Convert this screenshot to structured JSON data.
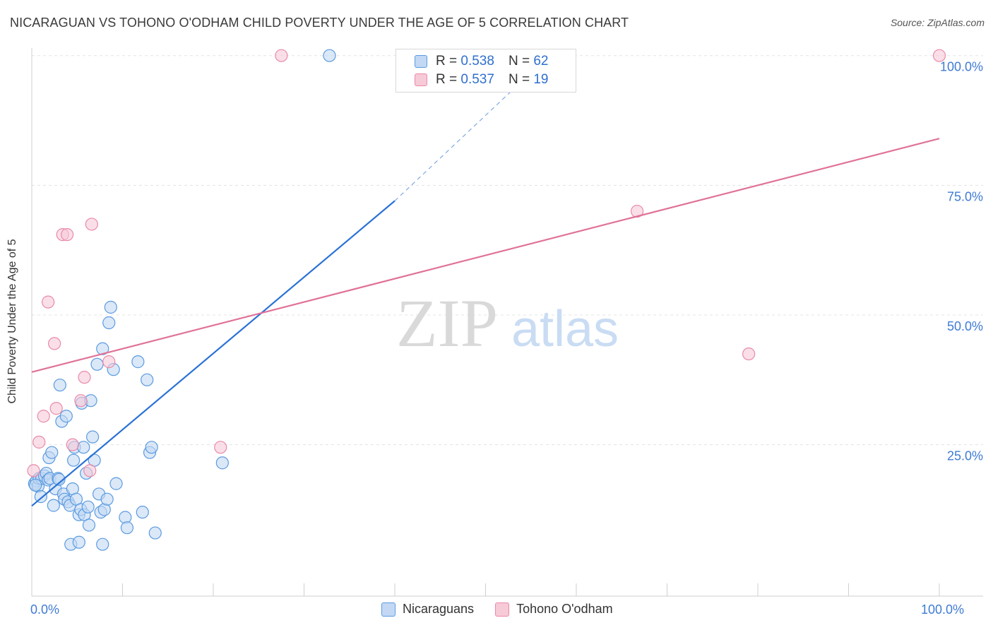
{
  "chart_data": {
    "type": "scatter",
    "title": "NICARAGUAN VS TOHONO O'ODHAM CHILD POVERTY UNDER THE AGE OF 5 CORRELATION CHART",
    "source": "Source: ZipAtlas.com",
    "ylabel": "Child Poverty Under the Age of 5",
    "xlabel": "",
    "xlim": [
      0,
      100
    ],
    "ylim": [
      -2,
      102
    ],
    "x_tick_labels": [
      {
        "value": 0,
        "label": "0.0%"
      },
      {
        "value": 100,
        "label": "100.0%"
      }
    ],
    "y_tick_labels": [
      {
        "value": 25,
        "label": "25.0%"
      },
      {
        "value": 50,
        "label": "50.0%"
      },
      {
        "value": 75,
        "label": "75.0%"
      },
      {
        "value": 100,
        "label": "100.0%"
      }
    ],
    "watermark": {
      "zip": "ZIP",
      "atlas": "atlas"
    },
    "series": [
      {
        "name": "Nicaraguans",
        "color": "#5b9be0",
        "fill": "#c3d8f4",
        "r": "0.538",
        "n": "62",
        "trend": {
          "x0": 0,
          "y0": 13.2,
          "x1": 40,
          "y1": 72.0,
          "dash_to_x": 57,
          "dash_to_y": 100
        },
        "points": [
          [
            0.3,
            17.5
          ],
          [
            0.5,
            18.0
          ],
          [
            0.7,
            17.0
          ],
          [
            0.8,
            18.5
          ],
          [
            1.0,
            15.0
          ],
          [
            1.1,
            18.5
          ],
          [
            1.4,
            19.0
          ],
          [
            1.6,
            19.5
          ],
          [
            1.8,
            18.2
          ],
          [
            1.9,
            22.5
          ],
          [
            2.0,
            18.5
          ],
          [
            2.2,
            23.5
          ],
          [
            2.4,
            13.3
          ],
          [
            2.6,
            16.5
          ],
          [
            2.9,
            18.5
          ],
          [
            3.0,
            18.3
          ],
          [
            3.1,
            36.5
          ],
          [
            3.3,
            29.5
          ],
          [
            3.5,
            15.5
          ],
          [
            3.6,
            14.5
          ],
          [
            3.8,
            30.5
          ],
          [
            4.0,
            14.0
          ],
          [
            4.2,
            13.3
          ],
          [
            4.5,
            16.5
          ],
          [
            4.6,
            22.0
          ],
          [
            4.7,
            24.5
          ],
          [
            4.9,
            14.5
          ],
          [
            5.2,
            11.5
          ],
          [
            5.4,
            12.5
          ],
          [
            5.5,
            33.0
          ],
          [
            5.7,
            24.5
          ],
          [
            5.8,
            11.5
          ],
          [
            6.0,
            19.5
          ],
          [
            6.2,
            13.0
          ],
          [
            6.3,
            9.5
          ],
          [
            6.5,
            33.5
          ],
          [
            6.7,
            26.5
          ],
          [
            6.9,
            22.0
          ],
          [
            7.2,
            40.5
          ],
          [
            7.4,
            15.5
          ],
          [
            7.6,
            12.0
          ],
          [
            7.8,
            43.5
          ],
          [
            8.0,
            12.5
          ],
          [
            8.3,
            14.5
          ],
          [
            8.5,
            48.5
          ],
          [
            8.7,
            51.5
          ],
          [
            9.0,
            39.5
          ],
          [
            9.3,
            17.5
          ],
          [
            10.3,
            11.0
          ],
          [
            10.5,
            9.0
          ],
          [
            11.7,
            41.0
          ],
          [
            12.2,
            12.0
          ],
          [
            12.7,
            37.5
          ],
          [
            13.0,
            23.5
          ],
          [
            13.2,
            24.5
          ],
          [
            13.6,
            8.0
          ],
          [
            4.3,
            5.8
          ],
          [
            5.2,
            6.2
          ],
          [
            7.8,
            5.8
          ],
          [
            21.0,
            21.5
          ],
          [
            32.8,
            100.0
          ],
          [
            0.4,
            17.2
          ]
        ]
      },
      {
        "name": "Tohono O'odham",
        "color": "#e98aa8",
        "fill": "#f7cad8",
        "r": "0.537",
        "n": "19",
        "trend": {
          "x0": 0,
          "y0": 39.0,
          "x1": 100,
          "y1": 84.0
        },
        "points": [
          [
            0.2,
            20.0
          ],
          [
            0.8,
            25.5
          ],
          [
            1.3,
            30.5
          ],
          [
            1.8,
            52.5
          ],
          [
            2.5,
            44.5
          ],
          [
            2.7,
            32.0
          ],
          [
            3.4,
            65.5
          ],
          [
            3.9,
            65.5
          ],
          [
            4.5,
            25.0
          ],
          [
            5.4,
            33.5
          ],
          [
            5.8,
            38.0
          ],
          [
            6.4,
            20.0
          ],
          [
            6.6,
            67.5
          ],
          [
            8.5,
            41.0
          ],
          [
            20.8,
            24.5
          ],
          [
            27.5,
            100.0
          ],
          [
            66.7,
            70.0
          ],
          [
            79.0,
            42.5
          ],
          [
            100.0,
            100.0
          ]
        ]
      }
    ]
  },
  "legend": {
    "r_label": "R =",
    "n_label": "N ="
  }
}
